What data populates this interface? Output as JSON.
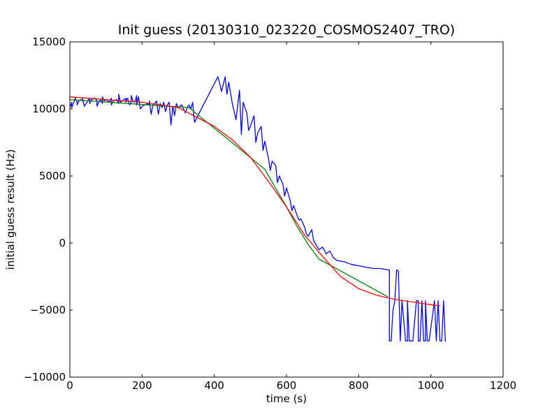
{
  "chart_data": {
    "type": "line",
    "title": "Init guess (20130310_023220_COSMOS2407_TRO)",
    "xlabel": "time (s)",
    "ylabel": "initial guess result (Hz)",
    "xlim": [
      0,
      1200
    ],
    "ylim": [
      -10000,
      15000
    ],
    "xticks": [
      0,
      200,
      400,
      600,
      800,
      1000,
      1200
    ],
    "yticks": [
      -10000,
      -5000,
      0,
      5000,
      10000,
      15000
    ],
    "grid": false,
    "series": [
      {
        "color": "#0000ff",
        "x": [
          0,
          5,
          5,
          15,
          20,
          20,
          25,
          30,
          35,
          35,
          40,
          50,
          55,
          55,
          60,
          70,
          75,
          75,
          80,
          85,
          90,
          90,
          95,
          100,
          110,
          115,
          115,
          120,
          130,
          135,
          135,
          140,
          150,
          155,
          155,
          160,
          165,
          170,
          170,
          175,
          180,
          185,
          185,
          190,
          195,
          200,
          215,
          220,
          220,
          225,
          230,
          235,
          240,
          245,
          250,
          255,
          260,
          265,
          270,
          275,
          280,
          285,
          290,
          295,
          300,
          305,
          310,
          320,
          325,
          330,
          335,
          340,
          345,
          410,
          415,
          420,
          430,
          435,
          440,
          450,
          455,
          460,
          470,
          475,
          480,
          490,
          495,
          500,
          510,
          515,
          520,
          530,
          535,
          540,
          550,
          555,
          560,
          570,
          575,
          580,
          590,
          595,
          600,
          610,
          615,
          620,
          630,
          635,
          640,
          650,
          655,
          660,
          670,
          675,
          690,
          700,
          710,
          720,
          730,
          740,
          760,
          780,
          800,
          820,
          840,
          860,
          880,
          885,
          885,
          890,
          895,
          900,
          905,
          905,
          910,
          915,
          915,
          920,
          930,
          935,
          935,
          940,
          945,
          950,
          960,
          965,
          965,
          970,
          975,
          980,
          985,
          985,
          990,
          995,
          1010,
          1015,
          1015,
          1020,
          1025,
          1030,
          1035,
          1035,
          1040,
          1042
        ],
        "y": [
          10100,
          10500,
          10100,
          10800,
          10500,
          10300,
          10600,
          10700,
          10600,
          10800,
          10200,
          10600,
          10800,
          10400,
          10700,
          10800,
          10600,
          10200,
          10500,
          10700,
          10400,
          10900,
          10600,
          10700,
          10500,
          10800,
          10300,
          10600,
          10700,
          10400,
          11100,
          10500,
          10700,
          10800,
          10500,
          10800,
          10300,
          10500,
          11000,
          10600,
          10500,
          11000,
          10300,
          10900,
          10000,
          10200,
          10400,
          10300,
          10600,
          9600,
          10300,
          10400,
          10600,
          9600,
          10400,
          10100,
          10500,
          9800,
          10300,
          10500,
          8800,
          10200,
          9500,
          10400,
          10100,
          10200,
          10300,
          9700,
          10100,
          10300,
          10000,
          10500,
          9000,
          12400,
          11900,
          11300,
          12400,
          11100,
          12000,
          10400,
          9800,
          9200,
          11400,
          8100,
          10500,
          9700,
          8400,
          8700,
          9500,
          7500,
          8200,
          8700,
          6900,
          7600,
          6300,
          5400,
          6100,
          5800,
          4500,
          5000,
          4400,
          3500,
          4100,
          3200,
          2400,
          2800,
          2000,
          1700,
          1800,
          1200,
          700,
          500,
          1000,
          200,
          -500,
          -300,
          -800,
          -600,
          -1100,
          -1300,
          -1400,
          -1600,
          -1700,
          -1800,
          -1900,
          -1900,
          -2000,
          -2000,
          -7300,
          -7300,
          -5000,
          -4300,
          -2000,
          -2000,
          -2100,
          -7300,
          -7300,
          -4300,
          -7300,
          -7300,
          -4300,
          -7300,
          -7300,
          -7300,
          -4300,
          -4300,
          -7300,
          -7300,
          -4300,
          -7300,
          -7300,
          -4300,
          -7300,
          -7300,
          -4300,
          -7300,
          -7300,
          -4300,
          -7300,
          -7300,
          -4300,
          -4300,
          -7300,
          -7300
        ]
      },
      {
        "color": "#008000",
        "x": [
          0,
          330,
          540,
          570,
          600,
          630,
          660,
          690,
          880
        ],
        "y": [
          10700,
          10100,
          5500,
          4100,
          2700,
          1200,
          -100,
          -1200,
          -4000
        ]
      },
      {
        "color": "#ff0000",
        "x": [
          0,
          100,
          200,
          300,
          350,
          400,
          450,
          500,
          550,
          600,
          650,
          700,
          750,
          800,
          850,
          900,
          950,
          1000,
          1025
        ],
        "y": [
          10900,
          10700,
          10500,
          10100,
          9400,
          8700,
          7700,
          6400,
          4600,
          2700,
          600,
          -1000,
          -2500,
          -3400,
          -3900,
          -4200,
          -4400,
          -4600,
          -4700
        ]
      }
    ]
  }
}
